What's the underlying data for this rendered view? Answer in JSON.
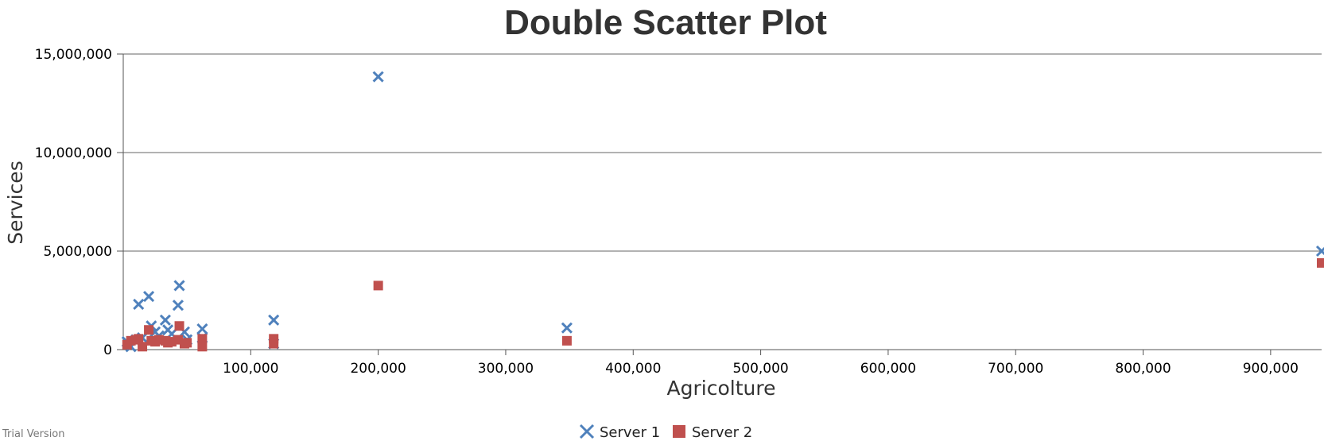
{
  "chart_data": {
    "type": "scatter",
    "title": "Double Scatter Plot",
    "xlabel": "Agricolture",
    "ylabel": "Services",
    "xlim": [
      0,
      940000
    ],
    "ylim": [
      0,
      15000000
    ],
    "x_ticks": [
      100000,
      200000,
      300000,
      400000,
      500000,
      600000,
      700000,
      800000,
      900000
    ],
    "x_tick_labels": [
      "100,000",
      "200,000",
      "300,000",
      "400,000",
      "500,000",
      "600,000",
      "700,000",
      "800,000",
      "900,000"
    ],
    "y_ticks": [
      0,
      5000000,
      10000000,
      15000000
    ],
    "y_tick_labels": [
      "0",
      "5,000,000",
      "10,000,000",
      "15,000,000"
    ],
    "grid": "horizontal",
    "legend_position": "bottom-center",
    "series": [
      {
        "name": "Server 1",
        "marker": "cross",
        "color": "#4f81bc",
        "points": [
          [
            3000,
            400000
          ],
          [
            6000,
            150000
          ],
          [
            10000,
            500000
          ],
          [
            12000,
            2300000
          ],
          [
            15000,
            600000
          ],
          [
            20000,
            2700000
          ],
          [
            22000,
            1200000
          ],
          [
            25000,
            900000
          ],
          [
            28000,
            700000
          ],
          [
            33000,
            1500000
          ],
          [
            35000,
            1000000
          ],
          [
            38000,
            800000
          ],
          [
            43000,
            2250000
          ],
          [
            44000,
            3250000
          ],
          [
            48000,
            900000
          ],
          [
            50000,
            500000
          ],
          [
            62000,
            1050000
          ],
          [
            62000,
            600000
          ],
          [
            118000,
            1500000
          ],
          [
            118000,
            300000
          ],
          [
            200000,
            13850000
          ],
          [
            348000,
            1100000
          ],
          [
            940000,
            5000000
          ]
        ]
      },
      {
        "name": "Server 2",
        "marker": "square",
        "color": "#c0504e",
        "points": [
          [
            3000,
            250000
          ],
          [
            6000,
            450000
          ],
          [
            10000,
            500000
          ],
          [
            12000,
            550000
          ],
          [
            15000,
            150000
          ],
          [
            20000,
            1000000
          ],
          [
            22000,
            450000
          ],
          [
            25000,
            400000
          ],
          [
            28000,
            500000
          ],
          [
            33000,
            450000
          ],
          [
            35000,
            350000
          ],
          [
            38000,
            400000
          ],
          [
            43000,
            500000
          ],
          [
            44000,
            1200000
          ],
          [
            48000,
            300000
          ],
          [
            50000,
            350000
          ],
          [
            62000,
            550000
          ],
          [
            62000,
            150000
          ],
          [
            118000,
            550000
          ],
          [
            118000,
            300000
          ],
          [
            200000,
            3250000
          ],
          [
            348000,
            450000
          ],
          [
            940000,
            4400000
          ]
        ]
      }
    ]
  },
  "footer": {
    "trial_text": "Trial Version"
  }
}
